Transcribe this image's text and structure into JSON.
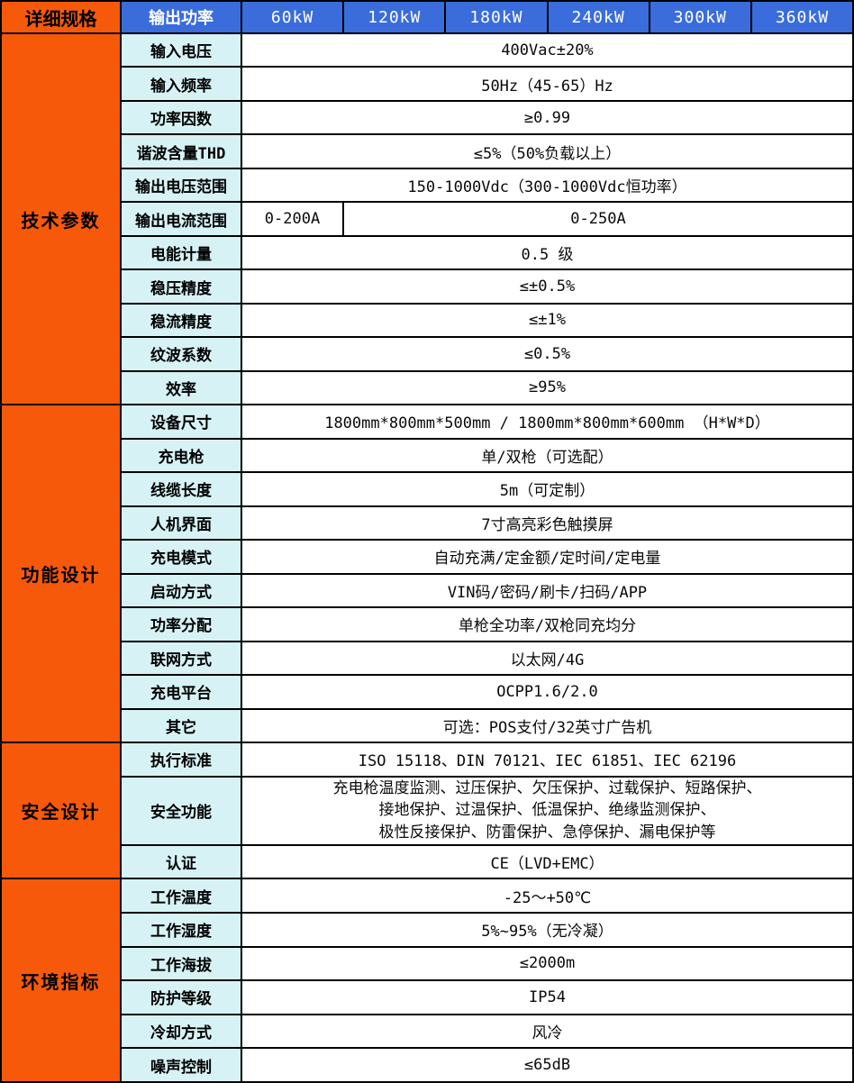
{
  "colors": {
    "section_orange": "#F7590B",
    "header_blue": "#3A6CDB",
    "label_cyan": "#D6F2F5",
    "border_black": "#000000",
    "value_white": "#FFFFFF"
  },
  "header": {
    "corner": "详细规格",
    "output_power_label": "输出功率",
    "power_columns": [
      "60kW",
      "120kW",
      "180kW",
      "240kW",
      "300kW",
      "360kW"
    ]
  },
  "sections": [
    {
      "name": "技术参数",
      "rows": [
        {
          "label": "输入电压",
          "value": "400Vac±20%"
        },
        {
          "label": "输入频率",
          "value": "50Hz（45-65）Hz"
        },
        {
          "label": "功率因数",
          "value": "≥0.99"
        },
        {
          "label": "谐波含量THD",
          "value": "≤5%（50%负载以上）"
        },
        {
          "label": "输出电压范围",
          "value": "150-1000Vdc（300-1000Vdc恒功率）"
        },
        {
          "label": "输出电流范围",
          "value_60kw": "0-200A",
          "value_rest": "0-250A"
        },
        {
          "label": "电能计量",
          "value": "0.5 级"
        },
        {
          "label": "稳压精度",
          "value": "≤±0.5%"
        },
        {
          "label": "稳流精度",
          "value": "≤±1%"
        },
        {
          "label": "纹波系数",
          "value": "≤0.5%"
        },
        {
          "label": "效率",
          "value": "≥95%"
        }
      ]
    },
    {
      "name": "功能设计",
      "rows": [
        {
          "label": "设备尺寸",
          "value": "1800mm*800mm*500mm / 1800mm*800mm*600mm （H*W*D）"
        },
        {
          "label": "充电枪",
          "value": "单/双枪（可选配）"
        },
        {
          "label": "线缆长度",
          "value": "5m（可定制）"
        },
        {
          "label": "人机界面",
          "value": "7寸高亮彩色触摸屏"
        },
        {
          "label": "充电模式",
          "value": "自动充满/定金额/定时间/定电量"
        },
        {
          "label": "启动方式",
          "value": "VIN码/密码/刷卡/扫码/APP"
        },
        {
          "label": "功率分配",
          "value": "单枪全功率/双枪同充均分"
        },
        {
          "label": "联网方式",
          "value": "以太网/4G"
        },
        {
          "label": "充电平台",
          "value": "OCPP1.6/2.0"
        },
        {
          "label": "其它",
          "value": "可选：POS支付/32英寸广告机"
        }
      ]
    },
    {
      "name": "安全设计",
      "rows": [
        {
          "label": "执行标准",
          "value": "ISO 15118、DIN 70121、IEC 61851、IEC 62196"
        },
        {
          "label": "安全功能",
          "line1": "充电枪温度监测、过压保护、欠压保护、过载保护、短路保护、",
          "line2": "接地保护、过温保护、低温保护、绝缘监测保护、",
          "line3": "极性反接保护、防雷保护、急停保护、漏电保护等"
        },
        {
          "label": "认证",
          "value": "CE（LVD+EMC）"
        }
      ]
    },
    {
      "name": "环境指标",
      "rows": [
        {
          "label": "工作温度",
          "value": "-25～+50℃"
        },
        {
          "label": "工作湿度",
          "value": "5%~95%（无冷凝）"
        },
        {
          "label": "工作海拔",
          "value": "≤2000m"
        },
        {
          "label": "防护等级",
          "value": "IP54"
        },
        {
          "label": "冷却方式",
          "value": "风冷"
        },
        {
          "label": "噪声控制",
          "value": "≤65dB"
        }
      ]
    }
  ]
}
